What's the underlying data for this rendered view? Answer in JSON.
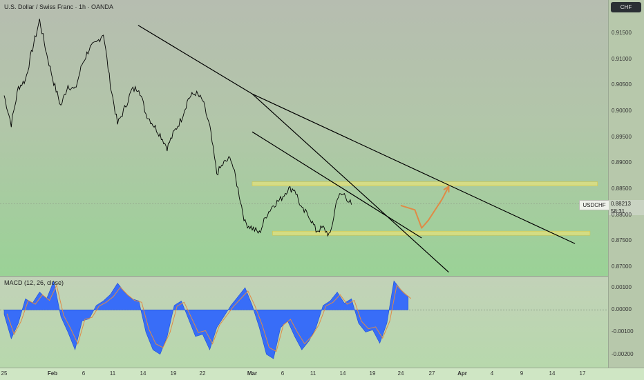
{
  "header": {
    "title": "U.S. Dollar / Swiss Franc · 1h · OANDA",
    "currency_badge": "CHF"
  },
  "last_price": {
    "symbol": "USDCHF",
    "value": "0.88213",
    "countdown": "58:31"
  },
  "colors": {
    "price_line": "#000000",
    "trendline": "#000000",
    "zone_fill": "#e8e27a",
    "zone_stroke": "#d2c64a",
    "projection": "#e08a45",
    "macd_hist": "#2962ff",
    "macd_line": "#e08a45"
  },
  "chart_data": [
    {
      "type": "line",
      "title": "U.S. Dollar / Swiss Franc · 1h · OANDA",
      "x_ticks": [
        "25",
        "Feb",
        "6",
        "11",
        "14",
        "19",
        "22",
        "Mar",
        "6",
        "11",
        "14",
        "19",
        "24",
        "27",
        "Apr",
        "4",
        "9",
        "14",
        "17"
      ],
      "y_ticks": [
        "0.91500",
        "0.91000",
        "0.90500",
        "0.90000",
        "0.89500",
        "0.89000",
        "0.88500",
        "0.88000",
        "0.87500",
        "0.87000"
      ],
      "ylim": [
        0.8683,
        0.9203
      ],
      "series": [
        {
          "name": "USDCHF",
          "points": [
            [
              "25",
              0.903
            ],
            [
              "27",
              0.8975
            ],
            [
              "28",
              0.9045
            ],
            [
              "29",
              0.906
            ],
            [
              "30",
              0.912
            ],
            [
              "Feb",
              0.9175
            ],
            [
              "2",
              0.911
            ],
            [
              "4",
              0.9055
            ],
            [
              "6",
              0.901
            ],
            [
              "7",
              0.905
            ],
            [
              "8",
              0.904
            ],
            [
              "9",
              0.909
            ],
            [
              "11",
              0.912
            ],
            [
              "12",
              0.913
            ],
            [
              "13",
              0.915
            ],
            [
              "14",
              0.905
            ],
            [
              "15",
              0.8975
            ],
            [
              "16",
              0.9005
            ],
            [
              "18",
              0.904
            ],
            [
              "19",
              0.9045
            ],
            [
              "20",
              0.8995
            ],
            [
              "21",
              0.8975
            ],
            [
              "22",
              0.8955
            ],
            [
              "23",
              0.893
            ],
            [
              "24",
              0.896
            ],
            [
              "26",
              0.8985
            ],
            [
              "27",
              0.9025
            ],
            [
              "28",
              0.9035
            ],
            [
              "Mar",
              0.902
            ],
            [
              "2",
              0.897
            ],
            [
              "4",
              0.888
            ],
            [
              "5",
              0.89
            ],
            [
              "6",
              0.891
            ],
            [
              "7",
              0.885
            ],
            [
              "8",
              0.8785
            ],
            [
              "9",
              0.8775
            ],
            [
              "10",
              0.8765
            ],
            [
              "11",
              0.88
            ],
            [
              "12",
              0.882
            ],
            [
              "13",
              0.883
            ],
            [
              "14",
              0.885
            ],
            [
              "15",
              0.885
            ],
            [
              "16",
              0.881
            ],
            [
              "17",
              0.88
            ],
            [
              "18",
              0.877
            ],
            [
              "19",
              0.8775
            ],
            [
              "20",
              0.876
            ],
            [
              "21",
              0.8835
            ],
            [
              "22",
              0.884
            ],
            [
              "23",
              0.882
            ]
          ]
        }
      ],
      "annotations": {
        "trendlines": [
          {
            "from": [
              "Feb 13",
              0.9165
            ],
            "to": [
              "Mar",
              0.9033
            ]
          },
          {
            "from": [
              "Mar",
              0.9033
            ],
            "to": [
              "Apr 16",
              0.8745
            ]
          },
          {
            "from": [
              "Mar",
              0.9033
            ],
            "to": [
              "Mar 30",
              0.869
            ]
          },
          {
            "from": [
              "Mar 1",
              0.896
            ],
            "to": [
              "Mar 26",
              0.8756
            ]
          }
        ],
        "horizontal_zones": [
          {
            "from_x": "Mar",
            "to_x": "Apr 19",
            "y": 0.886
          },
          {
            "from_x": "Mar 4",
            "to_x": "Apr 18",
            "y": 0.8765
          }
        ],
        "projection_path": [
          [
            "Mar 23",
            0.8818
          ],
          [
            "Mar 25",
            0.881
          ],
          [
            "Mar 26",
            0.8775
          ],
          [
            "Mar 27",
            0.879
          ],
          [
            "Mar 29",
            0.883
          ],
          [
            "Mar 30",
            0.8855
          ]
        ]
      },
      "grid": false
    },
    {
      "type": "area",
      "title": "MACD (12, 26, close)",
      "y_ticks": [
        "0.00100",
        "0.00000",
        "-0.00100",
        "-0.00200"
      ],
      "ylim": [
        -0.0026,
        0.0015
      ],
      "series": [
        {
          "name": "MACD histogram",
          "points": [
            [
              "25",
              -0.0002
            ],
            [
              "26",
              -0.0013
            ],
            [
              "27",
              -0.0006
            ],
            [
              "28",
              0.0005
            ],
            [
              "29",
              0.0003
            ],
            [
              "30",
              0.0008
            ],
            [
              "31",
              0.0005
            ],
            [
              "Feb",
              0.0013
            ],
            [
              "2",
              -0.0003
            ],
            [
              "3",
              -0.001
            ],
            [
              "4",
              -0.0018
            ],
            [
              "5",
              -0.0005
            ],
            [
              "6",
              -0.0004
            ],
            [
              "7",
              0.0002
            ],
            [
              "8",
              0.0004
            ],
            [
              "9",
              0.0007
            ],
            [
              "10",
              0.0012
            ],
            [
              "11",
              0.0008
            ],
            [
              "12",
              0.0005
            ],
            [
              "13",
              0.0004
            ],
            [
              "14",
              -0.001
            ],
            [
              "15",
              -0.0018
            ],
            [
              "16",
              -0.002
            ],
            [
              "17",
              -0.0012
            ],
            [
              "18",
              0.0002
            ],
            [
              "19",
              0.0004
            ],
            [
              "20",
              -0.0004
            ],
            [
              "21",
              -0.0012
            ],
            [
              "22",
              -0.0011
            ],
            [
              "23",
              -0.0018
            ],
            [
              "24",
              -0.0008
            ],
            [
              "25",
              -0.0003
            ],
            [
              "26",
              0.0002
            ],
            [
              "27",
              0.0006
            ],
            [
              "28",
              0.001
            ],
            [
              "Mar",
              0.0002
            ],
            [
              "2",
              -0.0008
            ],
            [
              "3",
              -0.002
            ],
            [
              "4",
              -0.0022
            ],
            [
              "5",
              -0.0008
            ],
            [
              "6",
              -0.0005
            ],
            [
              "7",
              -0.0012
            ],
            [
              "8",
              -0.0018
            ],
            [
              "9",
              -0.0014
            ],
            [
              "10",
              -0.0008
            ],
            [
              "11",
              0.0002
            ],
            [
              "12",
              0.0004
            ],
            [
              "13",
              0.0008
            ],
            [
              "14",
              0.0003
            ],
            [
              "15",
              0.0005
            ],
            [
              "16",
              -0.0006
            ],
            [
              "17",
              -0.001
            ],
            [
              "18",
              -0.0009
            ],
            [
              "19",
              -0.0015
            ],
            [
              "20",
              -0.0006
            ],
            [
              "21",
              0.0013
            ],
            [
              "22",
              0.0009
            ],
            [
              "23",
              0.0006
            ]
          ]
        }
      ]
    }
  ]
}
